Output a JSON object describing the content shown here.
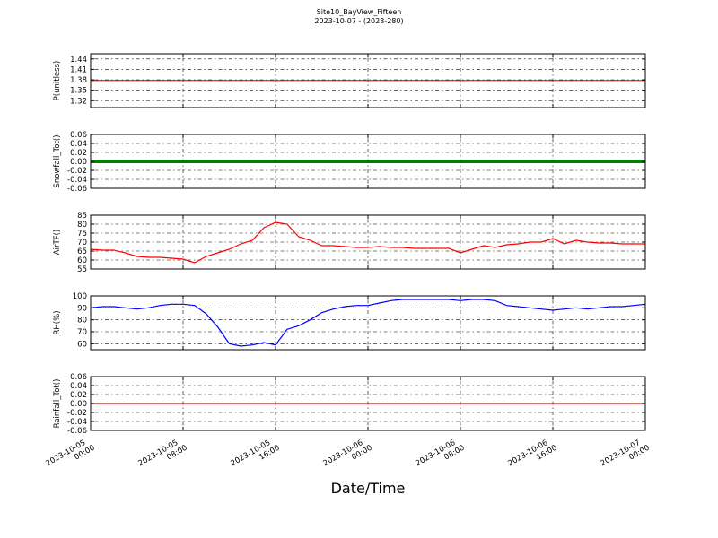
{
  "figure": {
    "title": "Site10_BayView_Fifteen",
    "subtitle": "2023-10-07 - (2023-280)",
    "xlabel": "Date/Time",
    "xlim": [
      "2023-10-05 00:00",
      "2023-10-07 00:00"
    ],
    "xticks": [
      "2023-10-05 00:00",
      "2023-10-05 08:00",
      "2023-10-05 16:00",
      "2023-10-06 00:00",
      "2023-10-06 08:00",
      "2023-10-06 16:00",
      "2023-10-07 00:00"
    ],
    "grid": true
  },
  "chart_data": [
    {
      "type": "line",
      "ylabel": "P(unitless)",
      "ylim": [
        1.3,
        1.455
      ],
      "yticks": [
        1.32,
        1.35,
        1.38,
        1.41,
        1.44
      ],
      "x": [
        "2023-10-05 00:00",
        "2023-10-05 08:00",
        "2023-10-05 16:00",
        "2023-10-06 00:00",
        "2023-10-06 08:00",
        "2023-10-06 16:00",
        "2023-10-07 00:00"
      ],
      "series": [
        {
          "color": "#ff0000",
          "values": [
            1.378,
            1.378,
            1.378,
            1.378,
            1.378,
            1.378,
            1.378
          ]
        }
      ]
    },
    {
      "type": "line",
      "ylabel": "Snowfall_Tot()",
      "ylim": [
        -0.06,
        0.06
      ],
      "yticks": [
        -0.06,
        -0.04,
        -0.02,
        {
          "value": 0,
          "label": "0.00"
        },
        0.02,
        0.04,
        0.06
      ],
      "x": [
        "2023-10-05 00:00",
        "2023-10-05 08:00",
        "2023-10-05 16:00",
        "2023-10-06 00:00",
        "2023-10-06 08:00",
        "2023-10-06 16:00",
        "2023-10-07 00:00"
      ],
      "series": [
        {
          "color": "#008000",
          "width": 4,
          "values": [
            0,
            0,
            0,
            0,
            0,
            0,
            0
          ]
        }
      ]
    },
    {
      "type": "line",
      "ylabel": "AirTF()",
      "ylim": [
        55,
        85
      ],
      "yticks": [
        55,
        60,
        65,
        70,
        75,
        80,
        85
      ],
      "x": [
        "2023-10-05 00:00",
        "2023-10-05 01:00",
        "2023-10-05 02:00",
        "2023-10-05 03:00",
        "2023-10-05 04:00",
        "2023-10-05 05:00",
        "2023-10-05 06:00",
        "2023-10-05 07:00",
        "2023-10-05 08:00",
        "2023-10-05 09:00",
        "2023-10-05 10:00",
        "2023-10-05 11:00",
        "2023-10-05 12:00",
        "2023-10-05 13:00",
        "2023-10-05 14:00",
        "2023-10-05 15:00",
        "2023-10-05 16:00",
        "2023-10-05 17:00",
        "2023-10-05 18:00",
        "2023-10-05 19:00",
        "2023-10-05 20:00",
        "2023-10-05 21:00",
        "2023-10-05 22:00",
        "2023-10-05 23:00",
        "2023-10-06 00:00",
        "2023-10-06 01:00",
        "2023-10-06 02:00",
        "2023-10-06 03:00",
        "2023-10-06 04:00",
        "2023-10-06 05:00",
        "2023-10-06 06:00",
        "2023-10-06 07:00",
        "2023-10-06 08:00",
        "2023-10-06 09:00",
        "2023-10-06 10:00",
        "2023-10-06 11:00",
        "2023-10-06 12:00",
        "2023-10-06 13:00",
        "2023-10-06 14:00",
        "2023-10-06 15:00",
        "2023-10-06 16:00",
        "2023-10-06 17:00",
        "2023-10-06 18:00",
        "2023-10-06 19:00",
        "2023-10-06 20:00",
        "2023-10-06 21:00",
        "2023-10-06 22:00",
        "2023-10-06 23:00",
        "2023-10-07 00:00"
      ],
      "series": [
        {
          "color": "#ff0000",
          "values": [
            66,
            65.5,
            65.5,
            64,
            62,
            61.5,
            61.5,
            61,
            60.5,
            58.5,
            62,
            64,
            66,
            69,
            71,
            78,
            81,
            80,
            73,
            71,
            68,
            68,
            67.5,
            67,
            67,
            67.5,
            67,
            67,
            66.5,
            66.5,
            66.5,
            66.5,
            64,
            66,
            68,
            67,
            68.5,
            69,
            70,
            70,
            72,
            69,
            71,
            70,
            69.5,
            69.5,
            69,
            69,
            69
          ]
        }
      ]
    },
    {
      "type": "line",
      "ylabel": "RH(%)",
      "ylim": [
        55,
        100
      ],
      "yticks": [
        60,
        70,
        80,
        90,
        100
      ],
      "x": [
        "2023-10-05 00:00",
        "2023-10-05 01:00",
        "2023-10-05 02:00",
        "2023-10-05 03:00",
        "2023-10-05 04:00",
        "2023-10-05 05:00",
        "2023-10-05 06:00",
        "2023-10-05 07:00",
        "2023-10-05 08:00",
        "2023-10-05 09:00",
        "2023-10-05 10:00",
        "2023-10-05 11:00",
        "2023-10-05 12:00",
        "2023-10-05 13:00",
        "2023-10-05 14:00",
        "2023-10-05 15:00",
        "2023-10-05 16:00",
        "2023-10-05 17:00",
        "2023-10-05 18:00",
        "2023-10-05 19:00",
        "2023-10-05 20:00",
        "2023-10-05 21:00",
        "2023-10-05 22:00",
        "2023-10-05 23:00",
        "2023-10-06 00:00",
        "2023-10-06 01:00",
        "2023-10-06 02:00",
        "2023-10-06 03:00",
        "2023-10-06 04:00",
        "2023-10-06 05:00",
        "2023-10-06 06:00",
        "2023-10-06 07:00",
        "2023-10-06 08:00",
        "2023-10-06 09:00",
        "2023-10-06 10:00",
        "2023-10-06 11:00",
        "2023-10-06 12:00",
        "2023-10-06 13:00",
        "2023-10-06 14:00",
        "2023-10-06 15:00",
        "2023-10-06 16:00",
        "2023-10-06 17:00",
        "2023-10-06 18:00",
        "2023-10-06 19:00",
        "2023-10-06 20:00",
        "2023-10-06 21:00",
        "2023-10-06 22:00",
        "2023-10-06 23:00",
        "2023-10-07 00:00"
      ],
      "series": [
        {
          "color": "#0000ff",
          "values": [
            90,
            91,
            91,
            90,
            89,
            90,
            92,
            93,
            93,
            92,
            85,
            74,
            60,
            58,
            59,
            61,
            59,
            72,
            75,
            80,
            86,
            89,
            91,
            92,
            92,
            94,
            96,
            97,
            97,
            97,
            97,
            97,
            96,
            97,
            97,
            96,
            92,
            91,
            90,
            89,
            88,
            89,
            90,
            89,
            90,
            91,
            91,
            92,
            93
          ]
        }
      ]
    },
    {
      "type": "line",
      "ylabel": "Rainfall_Tot()",
      "ylim": [
        -0.06,
        0.06
      ],
      "yticks": [
        -0.06,
        -0.04,
        -0.02,
        {
          "value": 0,
          "label": "0.00"
        },
        0.02,
        0.04,
        0.06
      ],
      "x": [
        "2023-10-05 00:00",
        "2023-10-05 08:00",
        "2023-10-05 16:00",
        "2023-10-06 00:00",
        "2023-10-06 08:00",
        "2023-10-06 16:00",
        "2023-10-07 00:00"
      ],
      "series": [
        {
          "color": "#ff0000",
          "values": [
            0,
            0,
            0,
            0,
            0,
            0,
            0
          ]
        }
      ]
    }
  ]
}
